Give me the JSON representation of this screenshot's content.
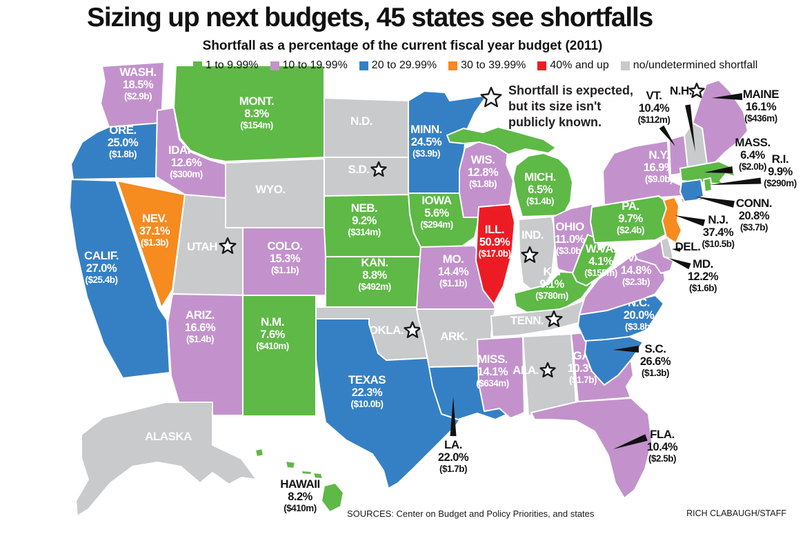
{
  "title": "Sizing up next budgets, 45 states see shortfalls",
  "subtitle": "Shortfall as a percentage of the current fiscal year budget (2011)",
  "legend": [
    {
      "key": "green",
      "label": "1 to 9.99%",
      "color": "#5eb946"
    },
    {
      "key": "purple",
      "label": "10 to 19.99%",
      "color": "#c392cc"
    },
    {
      "key": "blue",
      "label": "20 to 29.99%",
      "color": "#3580c4"
    },
    {
      "key": "orange",
      "label": "30 to 39.99%",
      "color": "#f68b1f"
    },
    {
      "key": "red",
      "label": "40% and up",
      "color": "#ed1c24"
    },
    {
      "key": "gray",
      "label": "no/undetermined shortfall",
      "color": "#c8cacc"
    }
  ],
  "note": {
    "lines": [
      "Shortfall is expected,",
      "but its size isn't",
      "publicly known."
    ]
  },
  "footer": {
    "sources": "SOURCES: Center on Budget and Policy Priorities, and states",
    "credit": "RICH CLABAUGH/STAFF"
  },
  "map": {
    "states": [
      {
        "id": "wash",
        "name": "WASH.",
        "pct": "18.5%",
        "amt": "($2.9b)",
        "cat": "purple"
      },
      {
        "id": "ore",
        "name": "ORE.",
        "pct": "25.0%",
        "amt": "($1.8b)",
        "cat": "blue"
      },
      {
        "id": "calif",
        "name": "CALIF.",
        "pct": "27.0%",
        "amt": "($25.4b)",
        "cat": "blue"
      },
      {
        "id": "nev",
        "name": "NEV.",
        "pct": "37.1%",
        "amt": "($1.3b)",
        "cat": "orange"
      },
      {
        "id": "idaho",
        "name": "IDAHO",
        "pct": "12.6%",
        "amt": "($300m)",
        "cat": "purple"
      },
      {
        "id": "mont",
        "name": "MONT.",
        "pct": "8.3%",
        "amt": "($154m)",
        "cat": "green"
      },
      {
        "id": "wyo",
        "name": "WYO.",
        "cat": "gray"
      },
      {
        "id": "utah",
        "name": "UTAH",
        "cat": "gray",
        "starred": true
      },
      {
        "id": "colo",
        "name": "COLO.",
        "pct": "15.3%",
        "amt": "($1.1b)",
        "cat": "purple"
      },
      {
        "id": "ariz",
        "name": "ARIZ.",
        "pct": "16.6%",
        "amt": "($1.4b)",
        "cat": "purple"
      },
      {
        "id": "nm",
        "name": "N.M.",
        "pct": "7.6%",
        "amt": "($410m)",
        "cat": "green"
      },
      {
        "id": "nd",
        "name": "N.D.",
        "cat": "gray"
      },
      {
        "id": "sd",
        "name": "S.D.",
        "cat": "gray",
        "starred": true
      },
      {
        "id": "neb",
        "name": "NEB.",
        "pct": "9.2%",
        "amt": "($314m)",
        "cat": "green"
      },
      {
        "id": "kan",
        "name": "KAN.",
        "pct": "8.8%",
        "amt": "($492m)",
        "cat": "green"
      },
      {
        "id": "okla",
        "name": "OKLA.",
        "cat": "gray",
        "starred": true
      },
      {
        "id": "texas",
        "name": "TEXAS",
        "pct": "22.3%",
        "amt": "($10.0b)",
        "cat": "blue"
      },
      {
        "id": "minn",
        "name": "MINN.",
        "pct": "24.5%",
        "amt": "($3.9b)",
        "cat": "blue"
      },
      {
        "id": "iowa",
        "name": "IOWA",
        "pct": "5.6%",
        "amt": "($294m)",
        "cat": "green"
      },
      {
        "id": "mo",
        "name": "MO.",
        "pct": "14.4%",
        "amt": "($1.1b)",
        "cat": "purple"
      },
      {
        "id": "ark",
        "name": "ARK.",
        "cat": "gray"
      },
      {
        "id": "la",
        "name": "LA.",
        "pct": "22.0%",
        "amt": "($1.7b)",
        "cat": "blue"
      },
      {
        "id": "wis",
        "name": "WIS.",
        "pct": "12.8%",
        "amt": "($1.8b)",
        "cat": "purple"
      },
      {
        "id": "ill",
        "name": "ILL.",
        "pct": "50.9%",
        "amt": "($17.0b)",
        "cat": "red"
      },
      {
        "id": "mich",
        "name": "MICH.",
        "pct": "6.5%",
        "amt": "($1.4b)",
        "cat": "green"
      },
      {
        "id": "ind",
        "name": "IND.",
        "cat": "gray",
        "starred": true
      },
      {
        "id": "ohio",
        "name": "OHIO",
        "pct": "11.0%",
        "amt": "($3.0b)",
        "cat": "purple"
      },
      {
        "id": "ky",
        "name": "KY.",
        "pct": "9.1%",
        "amt": "($780m)",
        "cat": "green"
      },
      {
        "id": "tenn",
        "name": "TENN.",
        "cat": "gray",
        "starred": true
      },
      {
        "id": "miss",
        "name": "MISS.",
        "pct": "14.1%",
        "amt": "($634m)",
        "cat": "purple"
      },
      {
        "id": "ala",
        "name": "ALA.",
        "cat": "gray",
        "starred": true
      },
      {
        "id": "ga",
        "name": "GA.",
        "pct": "10.3%",
        "amt": "($1.7b)",
        "cat": "purple"
      },
      {
        "id": "fla",
        "name": "FLA.",
        "pct": "10.4%",
        "amt": "($2.5b)",
        "cat": "purple"
      },
      {
        "id": "sc",
        "name": "S.C.",
        "pct": "26.6%",
        "amt": "($1.3b)",
        "cat": "blue"
      },
      {
        "id": "nc",
        "name": "N.C.",
        "pct": "20.0%",
        "amt": "($3.8b)",
        "cat": "blue"
      },
      {
        "id": "va",
        "name": "VA.",
        "pct": "14.8%",
        "amt": "($2.3b)",
        "cat": "purple"
      },
      {
        "id": "wva",
        "name": "W.VA.",
        "pct": "4.1%",
        "amt": "($155m)",
        "cat": "green"
      },
      {
        "id": "pa",
        "name": "PA.",
        "pct": "9.7%",
        "amt": "($2.4b)",
        "cat": "green"
      },
      {
        "id": "ny",
        "name": "N.Y.",
        "pct": "16.9%",
        "amt": "($9.0b)",
        "cat": "purple"
      },
      {
        "id": "vt",
        "name": "VT.",
        "pct": "10.4%",
        "amt": "($112m)",
        "cat": "purple"
      },
      {
        "id": "maine",
        "name": "MAINE",
        "pct": "16.1%",
        "amt": "($436m)",
        "cat": "purple"
      },
      {
        "id": "nh",
        "name": "N.H.",
        "cat": "gray",
        "starred": true
      },
      {
        "id": "mass",
        "name": "MASS.",
        "pct": "6.4%",
        "amt": "($2.0b)",
        "cat": "green"
      },
      {
        "id": "ri",
        "name": "R.I.",
        "pct": "9.9%",
        "amt": "($290m)",
        "cat": "green"
      },
      {
        "id": "conn",
        "name": "CONN.",
        "pct": "20.8%",
        "amt": "($3.7b)",
        "cat": "blue"
      },
      {
        "id": "nj",
        "name": "N.J.",
        "pct": "37.4%",
        "amt": "($10.5b)",
        "cat": "orange"
      },
      {
        "id": "del",
        "name": "DEL.",
        "cat": "gray"
      },
      {
        "id": "md",
        "name": "MD.",
        "pct": "12.2%",
        "amt": "($1.6b)",
        "cat": "purple"
      },
      {
        "id": "alaska",
        "name": "ALASKA",
        "cat": "gray"
      },
      {
        "id": "hawaii",
        "name": "HAWAII",
        "pct": "8.2%",
        "amt": "($410m)",
        "cat": "green"
      }
    ]
  }
}
